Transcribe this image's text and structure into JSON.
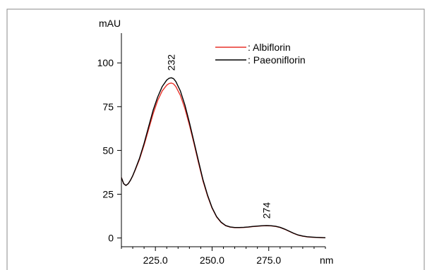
{
  "chart_data": {
    "type": "line",
    "title": "",
    "xlabel": "",
    "ylabel": "",
    "y_unit": "mAU",
    "x_unit": "nm",
    "xlim": [
      210,
      300
    ],
    "ylim": [
      -5,
      117
    ],
    "x_ticks": [
      225,
      250,
      275
    ],
    "x_tick_labels": [
      "225.0",
      "250.0",
      "275.0"
    ],
    "y_ticks": [
      0,
      25,
      50,
      75,
      100
    ],
    "y_tick_labels": [
      "0",
      "25",
      "50",
      "75",
      "100"
    ],
    "grid": false,
    "legend_position": "top-right",
    "annotations": [
      {
        "text": "232",
        "x": 232,
        "y": 91.5
      },
      {
        "text": "274",
        "x": 274,
        "y": 7
      }
    ],
    "series": [
      {
        "name": ": Albiflorin",
        "color": "#e8322a",
        "x": [
          210,
          211,
          212,
          213,
          214,
          215,
          216,
          218,
          220,
          222,
          224,
          226,
          228,
          230,
          231,
          232,
          233,
          234,
          236,
          238,
          240,
          242,
          244,
          246,
          248,
          250,
          252,
          254,
          256,
          258,
          260,
          262,
          264,
          266,
          268,
          270,
          272,
          274,
          276,
          278,
          280,
          282,
          284,
          286,
          288,
          290,
          292,
          294,
          296,
          298,
          300
        ],
        "y": [
          34.5,
          31,
          30,
          31,
          33,
          35.5,
          38.5,
          45,
          53,
          62,
          71,
          78.5,
          84,
          87.3,
          88.2,
          88.5,
          88,
          86.5,
          81.5,
          74,
          64.5,
          54,
          43,
          32.5,
          24,
          17,
          12,
          8.8,
          7,
          6.2,
          5.9,
          5.9,
          6,
          6.2,
          6.5,
          6.7,
          6.9,
          7,
          6.9,
          6.6,
          6,
          5,
          3.8,
          2.6,
          1.6,
          1,
          0.6,
          0.4,
          0.3,
          0.2,
          0.1
        ]
      },
      {
        "name": ": Paeoniflorin",
        "color": "#000000",
        "x": [
          210,
          211,
          212,
          213,
          214,
          215,
          216,
          218,
          220,
          222,
          224,
          226,
          228,
          230,
          231,
          232,
          233,
          234,
          236,
          238,
          240,
          242,
          244,
          246,
          248,
          250,
          252,
          254,
          256,
          258,
          260,
          262,
          264,
          266,
          268,
          270,
          272,
          274,
          276,
          278,
          280,
          282,
          284,
          286,
          288,
          290,
          292,
          294,
          296,
          298,
          300
        ],
        "y": [
          34.5,
          31,
          30,
          31,
          33,
          35.6,
          38.8,
          45.6,
          54,
          63.5,
          73,
          80.5,
          86.5,
          90.2,
          91.2,
          91.5,
          91,
          89.4,
          84,
          76,
          66,
          55,
          44,
          33.2,
          24.5,
          17.3,
          12.2,
          9,
          7.1,
          6.3,
          6,
          6,
          6.1,
          6.3,
          6.6,
          6.8,
          7,
          7.1,
          7,
          6.7,
          6.1,
          5.1,
          3.9,
          2.7,
          1.7,
          1.1,
          0.7,
          0.5,
          0.35,
          0.25,
          0.15
        ]
      }
    ]
  }
}
